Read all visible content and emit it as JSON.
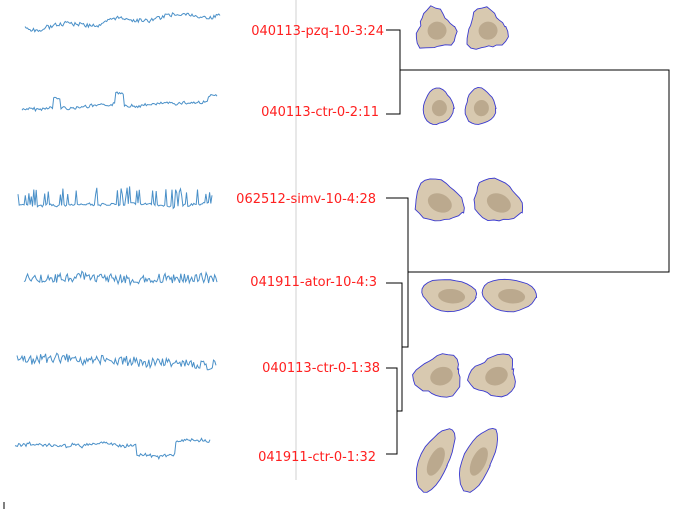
{
  "samples": [
    {
      "label": "040113-pzq-10-3:24"
    },
    {
      "label": "040113-ctr-0-2:11"
    },
    {
      "label": "062512-simv-10-4:28"
    },
    {
      "label": "041911-ator-10-4:3"
    },
    {
      "label": "040113-ctr-0-1:38"
    },
    {
      "label": "041911-ctr-0-1:32"
    }
  ],
  "colors": {
    "label": "#ff2020",
    "trace": "#4a90c8",
    "outline": "#3a3ad0",
    "dendrogram": "#000000",
    "divider": "#e8e8e8"
  }
}
